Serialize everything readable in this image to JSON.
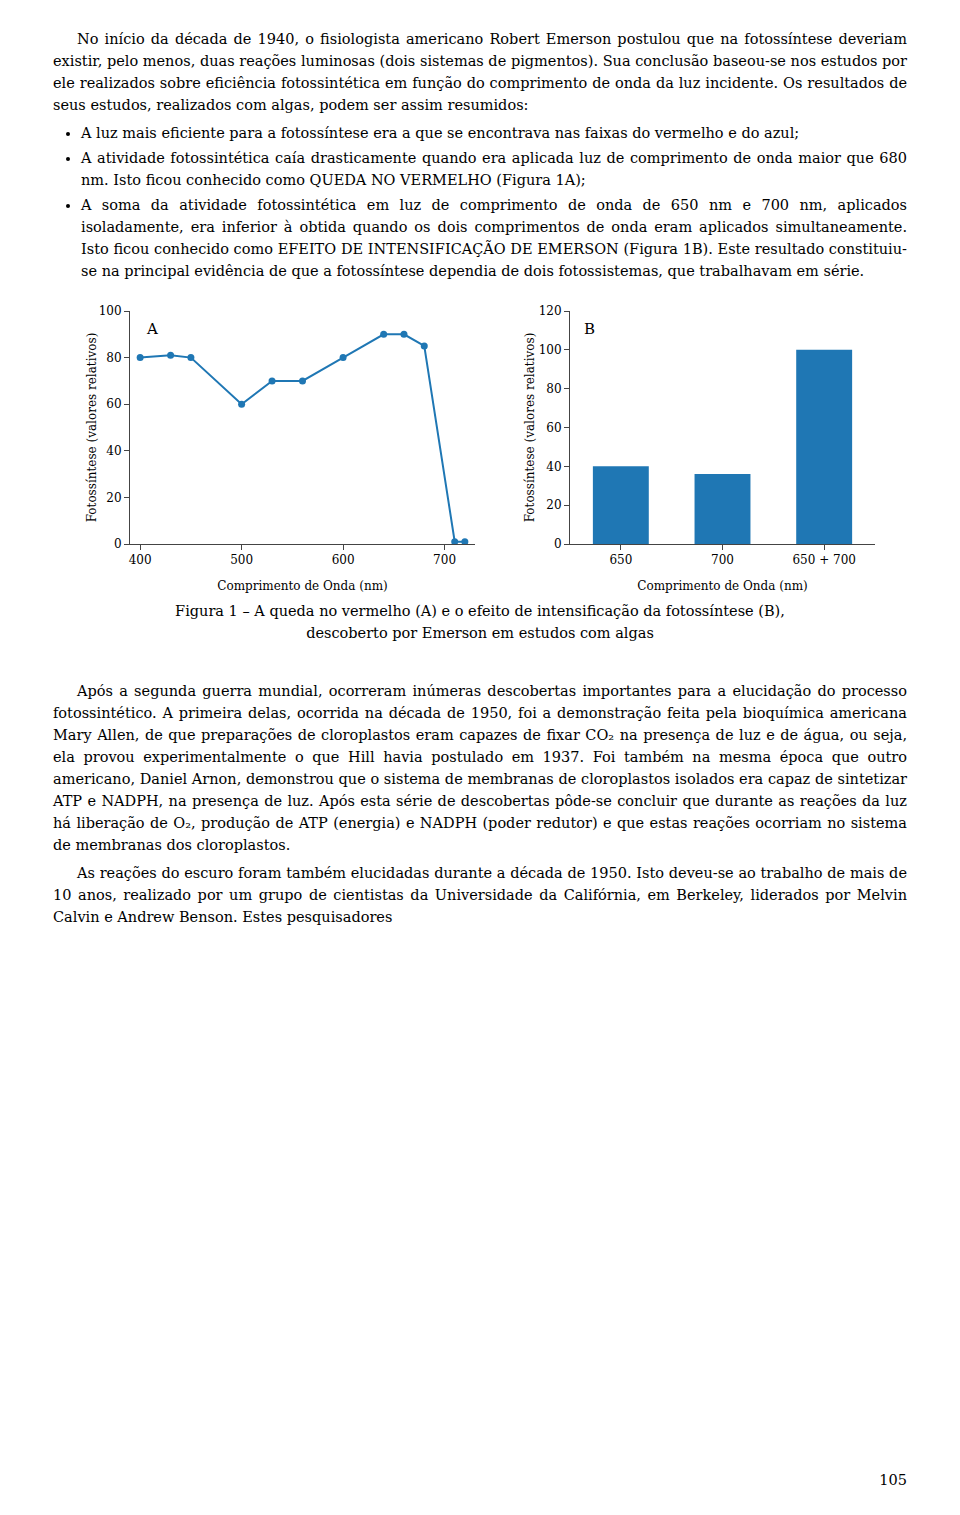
{
  "paragraphs": [
    "No início da década de 1940, o fisiologista americano Robert Emerson postulou que na fotossíntese deveriam existir, pelo menos, duas reações luminosas (dois sistemas de pigmentos). Sua conclusão baseou-se nos estudos por ele realizados sobre eficiência fotossintética em função do comprimento de onda da luz incidente. Os resultados de seus estudos, realizados com algas, podem ser assim resumidos:",
    "Após a segunda guerra mundial, ocorreram inúmeras descobertas importantes para a elucidação do processo fotossintético. A primeira delas, ocorrida na década de 1950, foi a demonstração feita pela bioquímica americana Mary Allen, de que preparações de cloroplastos eram capazes de fixar CO₂ na presença de luz e de água, ou seja, ela provou experimentalmente o que Hill havia postulado em 1937. Foi também na mesma época que outro americano, Daniel Arnon, demonstrou que o sistema de membranas de cloroplastos isolados era capaz  de sintetizar ATP e NADPH, na presença de luz. Após esta série de descobertas pôde-se concluir que durante as reações da luz há liberação de O₂, produção de ATP (energia) e  NADPH (poder redutor) e que estas reações ocorriam no sistema de membranas dos cloroplastos.",
    "As reações do escuro foram também elucidadas durante a década de 1950. Isto deveu-se ao trabalho de mais de 10 anos, realizado por um grupo de cientistas da Universidade da Califórnia, em Berkeley, liderados por Melvin Calvin e Andrew Benson. Estes pesquisadores"
  ],
  "bullets": [
    "A luz mais eficiente para a fotossíntese era a que se encontrava nas faixas do vermelho e do azul;",
    "A atividade fotossintética caía drasticamente quando era aplicada luz de comprimento de onda maior que 680 nm. Isto ficou conhecido como QUEDA NO VERMELHO (Figura 1A);",
    "A soma da atividade fotossintética em luz de comprimento de onda de 650 nm e 700 nm, aplicados isoladamente, era inferior à obtida quando os dois comprimentos de onda eram aplicados simultaneamente. Isto ficou conhecido como EFEITO DE INTENSIFICAÇÃO DE EMERSON (Figura 1B). Este resultado constituiu-se na principal evidência de que a fotossíntese dependia de dois fotossistemas, que trabalhavam em série."
  ],
  "caption": [
    "Figura 1 – A queda no vermelho (A) e o efeito de intensificação da fotossíntese (B),",
    "descoberto por Emerson em estudos com algas"
  ],
  "page_number": "105",
  "chart_data": [
    {
      "type": "line",
      "x": [
        400,
        430,
        450,
        500,
        530,
        560,
        600,
        640,
        660,
        680,
        710,
        720
      ],
      "values": [
        80,
        81,
        80,
        60,
        70,
        70,
        80,
        90,
        90,
        85,
        1,
        1
      ],
      "xlabel": "Comprimento de Onda (nm)",
      "ylabel": "Fotossíntese (valores relativos)",
      "annotations": [
        "A"
      ],
      "xlim": [
        390,
        730
      ],
      "xticks": [
        400,
        500,
        600,
        700
      ],
      "ylim": [
        0,
        100
      ],
      "yticks": [
        0,
        20,
        40,
        60,
        80,
        100
      ],
      "marker": "circle",
      "grid": false
    },
    {
      "type": "bar",
      "categories": [
        "650",
        "700",
        "650 + 700"
      ],
      "values": [
        40,
        36,
        100
      ],
      "xlabel": "Comprimento de Onda (nm)",
      "ylabel": "Fotossíntese (valores relativos)",
      "annotations": [
        "B"
      ],
      "ylim": [
        0,
        120
      ],
      "yticks": [
        0,
        20,
        40,
        60,
        80,
        100,
        120
      ],
      "grid": false
    }
  ]
}
